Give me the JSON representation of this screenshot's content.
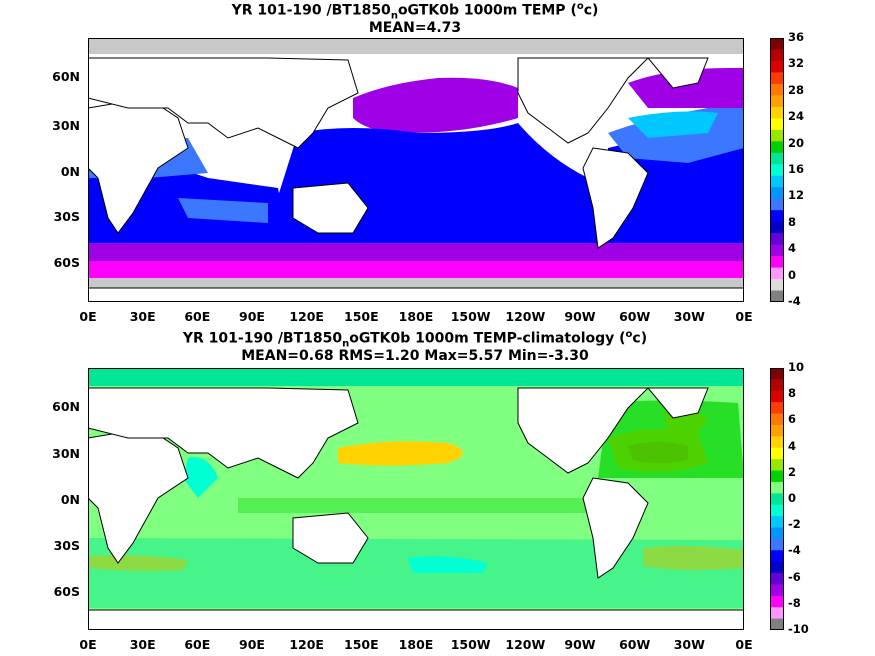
{
  "panels": [
    {
      "title_line1_pre": "YR 101-190 /BT1850",
      "title_line1_sub": "n",
      "title_line1_post": "oGTK0b 1000m TEMP (",
      "title_unit_sup": "o",
      "title_unit_post": "c)",
      "title_line2": "MEAN=4.73",
      "colorbar": {
        "labels": [
          "36",
          "32",
          "28",
          "24",
          "20",
          "16",
          "12",
          "8",
          "4",
          "0",
          "-4"
        ],
        "colors": [
          "#7f0000",
          "#b40000",
          "#dc0000",
          "#ff3c00",
          "#ff7800",
          "#ffa000",
          "#ffd200",
          "#ffff00",
          "#9be600",
          "#00d200",
          "#00e696",
          "#00ffd2",
          "#00c8ff",
          "#0096ff",
          "#3c78ff",
          "#0000ff",
          "#0000c8",
          "#6400dc",
          "#a000e6",
          "#ff00ff",
          "#ff96ff",
          "#dcdcdc",
          "#808080"
        ]
      }
    },
    {
      "title_line1_pre": "YR 101-190 /BT1850",
      "title_line1_sub": "n",
      "title_line1_post": "oGTK0b 1000m TEMP-climatology (",
      "title_unit_sup": "o",
      "title_unit_post": "c)",
      "title_line2": "MEAN=0.68   RMS=1.20   Max=5.57   Min=-3.30",
      "colorbar": {
        "labels": [
          "10",
          "8",
          "6",
          "4",
          "2",
          "0",
          "-2",
          "-4",
          "-6",
          "-8",
          "-10"
        ],
        "colors": [
          "#7f0000",
          "#b40000",
          "#dc0000",
          "#ff3c00",
          "#ff7800",
          "#ffa000",
          "#ffd200",
          "#ffff00",
          "#9be600",
          "#00d200",
          "#80ff80",
          "#00e696",
          "#00ffd2",
          "#00c8ff",
          "#0096ff",
          "#3c78ff",
          "#0000ff",
          "#0000c8",
          "#6400dc",
          "#a000e6",
          "#ff00ff",
          "#ff96ff",
          "#808080"
        ]
      }
    }
  ],
  "lat_labels": [
    "60N",
    "30N",
    "0N",
    "30S",
    "60S"
  ],
  "lon_labels": [
    "0E",
    "30E",
    "60E",
    "90E",
    "120E",
    "150E",
    "180E",
    "150W",
    "120W",
    "90W",
    "60W",
    "30W",
    "0E"
  ]
}
